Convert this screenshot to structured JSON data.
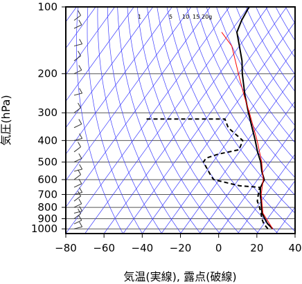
{
  "chart_data": {
    "type": "line",
    "subtype": "skew-T log-P diagram",
    "xlabel": "気温(実線), 露点(破線)",
    "ylabel": "気圧(hPa)",
    "xlim": [
      -80,
      40
    ],
    "ylim": [
      1050,
      100
    ],
    "y_scale": "log",
    "x_ticks": [
      -80,
      -60,
      -40,
      -20,
      0,
      20,
      40
    ],
    "y_ticks": [
      100,
      200,
      300,
      400,
      500,
      600,
      700,
      800,
      900,
      1000
    ],
    "grid": true,
    "mixing_ratio_labels": [
      "1",
      "5",
      "10",
      "15",
      "20g"
    ],
    "series": [
      {
        "style": "solid",
        "color": "#000000",
        "points": [
          {
            "p": 1000,
            "t": 26.5
          },
          {
            "p": 950,
            "t": 22.0
          },
          {
            "p": 900,
            "t": 18.5
          },
          {
            "p": 850,
            "t": 15.0
          },
          {
            "p": 800,
            "t": 12.5
          },
          {
            "p": 750,
            "t": 10.0
          },
          {
            "p": 700,
            "t": 7.0
          },
          {
            "p": 650,
            "t": 4.5
          },
          {
            "p": 600,
            "t": 3.5
          },
          {
            "p": 550,
            "t": -1.0
          },
          {
            "p": 500,
            "t": -5.0
          },
          {
            "p": 450,
            "t": -10.5
          },
          {
            "p": 400,
            "t": -16.0
          },
          {
            "p": 350,
            "t": -22.5
          },
          {
            "p": 300,
            "t": -30.0
          },
          {
            "p": 250,
            "t": -38.5
          },
          {
            "p": 200,
            "t": -48.0
          },
          {
            "p": 175,
            "t": -53.0
          },
          {
            "p": 150,
            "t": -60.0
          },
          {
            "p": 130,
            "t": -66.5
          },
          {
            "p": 115,
            "t": -68.5
          },
          {
            "p": 102,
            "t": -69.5
          },
          {
            "p": 100,
            "t": -69.5
          }
        ]
      },
      {
        "style": "dashed",
        "color": "#000000",
        "points": [
          {
            "p": 1000,
            "t": 24.0
          },
          {
            "p": 950,
            "t": 20.0
          },
          {
            "p": 900,
            "t": 17.0
          },
          {
            "p": 850,
            "t": 14.5
          },
          {
            "p": 800,
            "t": 11.5
          },
          {
            "p": 750,
            "t": 8.0
          },
          {
            "p": 700,
            "t": 6.0
          },
          {
            "p": 650,
            "t": 4.0
          },
          {
            "p": 640,
            "t": -7.0
          },
          {
            "p": 600,
            "t": -23.0
          },
          {
            "p": 575,
            "t": -26.0
          },
          {
            "p": 500,
            "t": -35.0
          },
          {
            "p": 480,
            "t": -35.0
          },
          {
            "p": 460,
            "t": -30.0
          },
          {
            "p": 440,
            "t": -21.0
          },
          {
            "p": 400,
            "t": -22.5
          },
          {
            "p": 350,
            "t": -35.0
          },
          {
            "p": 320,
            "t": -40.0
          },
          {
            "p": 320,
            "t": -81.0
          }
        ]
      },
      {
        "style": "solid",
        "color": "#ff0000",
        "points": [
          {
            "p": 1000,
            "t": 26.5
          },
          {
            "p": 850,
            "t": 15.5
          },
          {
            "p": 700,
            "t": 7.5
          },
          {
            "p": 600,
            "t": 3.0
          },
          {
            "p": 500,
            "t": -4.5
          },
          {
            "p": 400,
            "t": -15.0
          },
          {
            "p": 300,
            "t": -29.5
          },
          {
            "p": 250,
            "t": -39.0
          },
          {
            "p": 200,
            "t": -50.0
          },
          {
            "p": 150,
            "t": -64.0
          },
          {
            "p": 130,
            "t": -74.5
          }
        ]
      }
    ],
    "colors": {
      "grid": "#555555",
      "isotherm": "#3a3aff",
      "temperature": "#000000",
      "dewpoint": "#000000",
      "parcel": "#ff0000",
      "wind_barb": "#333333"
    }
  }
}
